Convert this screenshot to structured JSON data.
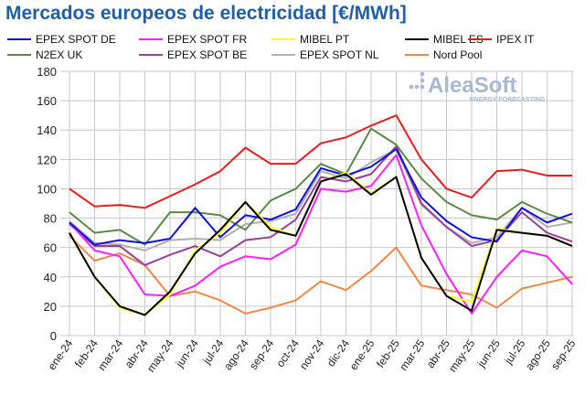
{
  "chart_data": {
    "type": "line",
    "title": "Mercados europeos de electricidad [€/MWh]",
    "xlabel": "",
    "ylabel": "",
    "ylim": [
      0,
      180
    ],
    "yticks": [
      0,
      20,
      40,
      60,
      80,
      100,
      120,
      140,
      160,
      180
    ],
    "grid": true,
    "legend_placement": "top",
    "watermark": "AleaSoft ENERGY FORECASTING",
    "categories": [
      "ene-24",
      "feb-24",
      "mar-24",
      "abr-24",
      "may-24",
      "jun-24",
      "jul-24",
      "ago-24",
      "sep-24",
      "oct-24",
      "nov-24",
      "dic-24",
      "ene-25",
      "feb-25",
      "mar-25",
      "abr-25",
      "may-25",
      "jun-25",
      "jul-25",
      "ago-25",
      "sep-25"
    ],
    "series": [
      {
        "name": "EPEX SPOT DE",
        "color": "#1010e0",
        "values": [
          77,
          62,
          65,
          63,
          66,
          87,
          67,
          82,
          79,
          86,
          114,
          109,
          115,
          127,
          94,
          78,
          67,
          64,
          87,
          77,
          83
        ]
      },
      {
        "name": "EPEX SPOT FR",
        "color": "#ff20ff",
        "values": [
          77,
          58,
          54,
          28,
          27,
          34,
          47,
          54,
          52,
          62,
          100,
          98,
          102,
          123,
          75,
          42,
          15,
          40,
          58,
          54,
          35
        ]
      },
      {
        "name": "MIBEL PT",
        "color": "#ffff20",
        "values": [
          70,
          40,
          19,
          14,
          28,
          58,
          70,
          91,
          74,
          68,
          105,
          111,
          97,
          108,
          53,
          27,
          23,
          73,
          70,
          68,
          61
        ]
      },
      {
        "name": "MIBEL ES",
        "color": "#000000",
        "values": [
          70,
          40,
          20,
          14,
          30,
          56,
          72,
          91,
          72,
          68,
          105,
          110,
          96,
          108,
          53,
          27,
          17,
          72,
          70,
          68,
          61
        ]
      },
      {
        "name": "IPEX IT",
        "color": "#ee1c1c",
        "values": [
          100,
          88,
          89,
          87,
          95,
          103,
          112,
          128,
          117,
          117,
          131,
          135,
          143,
          150,
          120,
          100,
          94,
          112,
          113,
          109,
          109
        ]
      },
      {
        "name": "N2EX UK",
        "color": "#5a8a46",
        "values": [
          84,
          70,
          72,
          62,
          84,
          84,
          82,
          72,
          92,
          100,
          117,
          110,
          141,
          130,
          107,
          91,
          82,
          79,
          91,
          83,
          77
        ]
      },
      {
        "name": "EPEX SPOT BE",
        "color": "#9a3f9a",
        "values": [
          76,
          61,
          61,
          48,
          55,
          61,
          54,
          65,
          67,
          79,
          108,
          105,
          110,
          129,
          90,
          74,
          61,
          65,
          84,
          70,
          64
        ]
      },
      {
        "name": "EPEX SPOT NL",
        "color": "#b0b0b0",
        "values": [
          78,
          63,
          62,
          58,
          65,
          66,
          65,
          76,
          78,
          83,
          112,
          107,
          118,
          127,
          89,
          74,
          63,
          67,
          87,
          74,
          77
        ]
      },
      {
        "name": "Nord Pool",
        "color": "#f08848",
        "values": [
          68,
          51,
          56,
          48,
          27,
          30,
          24,
          15,
          19,
          24,
          37,
          31,
          44,
          60,
          34,
          31,
          28,
          19,
          32,
          36,
          40
        ]
      }
    ]
  }
}
